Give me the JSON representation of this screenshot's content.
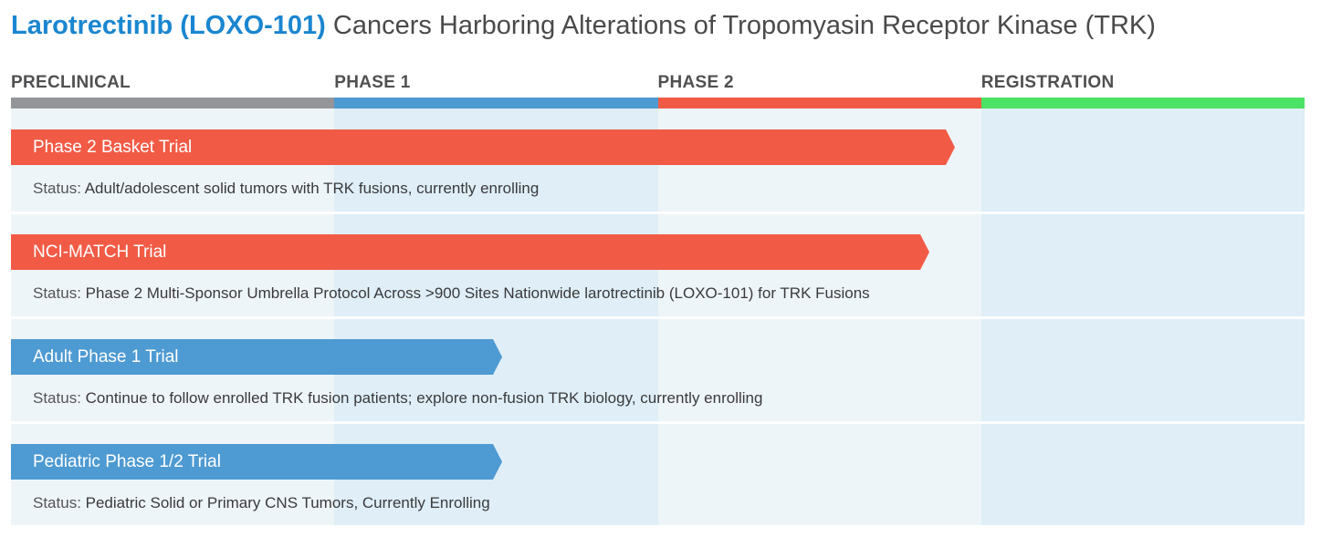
{
  "title": {
    "drug": "Larotrectinib (LOXO-101)",
    "rest": "Cancers Harboring Alterations of Tropomyasin Receptor Kinase (TRK)"
  },
  "phases": [
    {
      "label": "PRECLINICAL",
      "color": "#939598",
      "bg": "#eef5f9"
    },
    {
      "label": "PHASE 1",
      "color": "#4e9ad2",
      "bg": "#dfeef7"
    },
    {
      "label": "PHASE 2",
      "color": "#f15b46",
      "bg": "#eef5f9"
    },
    {
      "label": "REGISTRATION",
      "color": "#4ce263",
      "bg": "#dfeef7"
    }
  ],
  "status_prefix": "Status:",
  "trials": [
    {
      "name": "Phase 2 Basket Trial",
      "color": "#f15b46",
      "status": "Adult/adolescent solid tumors with TRK fusions, currently enrolling",
      "progress": 0.73
    },
    {
      "name": "NCI-MATCH Trial",
      "color": "#f15b46",
      "status": "Phase 2 Multi-Sponsor Umbrella Protocol Across >900 Sites Nationwide larotrectinib (LOXO-101) for TRK Fusions",
      "progress": 0.71
    },
    {
      "name": "Adult Phase 1 Trial",
      "color": "#4e9ad2",
      "status": "Continue to follow enrolled TRK fusion patients; explore non-fusion TRK biology, currently enrolling",
      "progress": 0.38
    },
    {
      "name": "Pediatric Phase 1/2 Trial",
      "color": "#4e9ad2",
      "status": "Pediatric Solid or Primary CNS Tumors, Currently Enrolling",
      "progress": 0.38
    }
  ],
  "chart_data": {
    "type": "bar",
    "title": "Larotrectinib (LOXO-101) Cancers Harboring Alterations of Tropomyasin Receptor Kinase (TRK)",
    "categories": [
      "Phase 2 Basket Trial",
      "NCI-MATCH Trial",
      "Adult Phase 1 Trial",
      "Pediatric Phase 1/2 Trial"
    ],
    "x_stages": [
      "PRECLINICAL",
      "PHASE 1",
      "PHASE 2",
      "REGISTRATION"
    ],
    "values": [
      0.73,
      0.71,
      0.38,
      0.38
    ],
    "orientation": "horizontal"
  }
}
